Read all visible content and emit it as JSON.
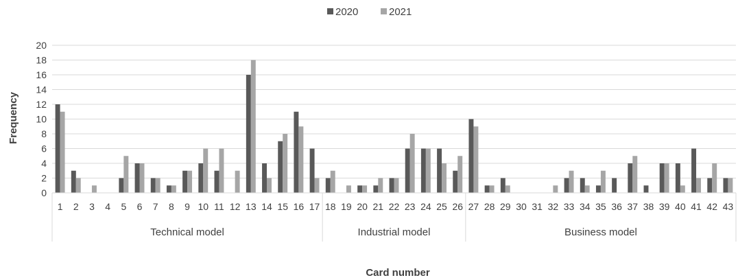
{
  "chart_data": {
    "type": "bar",
    "xlabel": "Card number",
    "ylabel": "Frequency",
    "ylim": [
      0,
      20
    ],
    "yticks": [
      0,
      2,
      4,
      6,
      8,
      10,
      12,
      14,
      16,
      18,
      20
    ],
    "grid": "horizontal",
    "legend_position": "top-center",
    "categories": [
      "1",
      "2",
      "3",
      "4",
      "5",
      "6",
      "7",
      "8",
      "9",
      "10",
      "11",
      "12",
      "13",
      "14",
      "15",
      "16",
      "17",
      "18",
      "19",
      "20",
      "21",
      "22",
      "23",
      "24",
      "25",
      "26",
      "27",
      "28",
      "29",
      "30",
      "31",
      "32",
      "33",
      "34",
      "35",
      "36",
      "37",
      "38",
      "39",
      "40",
      "41",
      "42",
      "43"
    ],
    "groups": [
      {
        "label": "Technical model",
        "start": 1,
        "end": 17
      },
      {
        "label": "Industrial model",
        "start": 18,
        "end": 26
      },
      {
        "label": "Business model",
        "start": 27,
        "end": 43
      }
    ],
    "series": [
      {
        "name": "2020",
        "color": "#595959",
        "values": [
          12,
          3,
          0,
          0,
          2,
          4,
          2,
          1,
          3,
          4,
          3,
          0,
          16,
          4,
          7,
          11,
          6,
          2,
          0,
          1,
          1,
          2,
          6,
          6,
          6,
          3,
          10,
          1,
          2,
          0,
          0,
          0,
          2,
          2,
          1,
          2,
          4,
          1,
          4,
          4,
          6,
          2,
          2
        ]
      },
      {
        "name": "2021",
        "color": "#a6a6a6",
        "values": [
          11,
          2,
          1,
          0,
          5,
          4,
          2,
          1,
          3,
          6,
          6,
          3,
          18,
          2,
          8,
          9,
          2,
          3,
          1,
          1,
          2,
          2,
          8,
          6,
          4,
          5,
          9,
          1,
          1,
          0,
          0,
          1,
          3,
          1,
          3,
          0,
          5,
          0,
          4,
          1,
          2,
          4,
          2
        ]
      }
    ]
  }
}
